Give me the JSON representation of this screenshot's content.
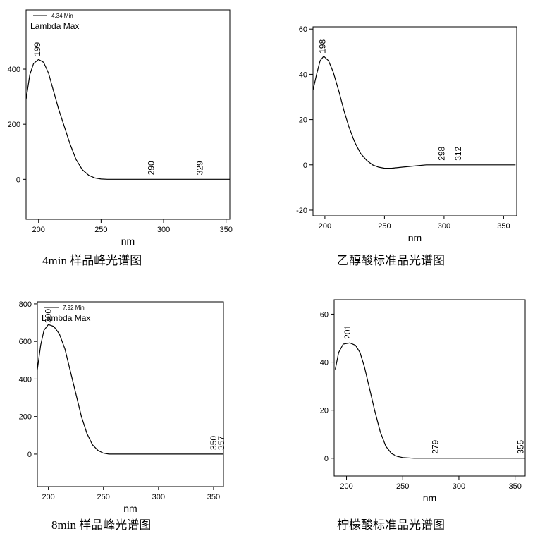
{
  "chart_data": [
    {
      "type": "line",
      "caption": "4min 样品峰光谱图",
      "xlabel": "nm",
      "legend": "4.34 Min",
      "annotation": "Lambda Max",
      "color": "#000000",
      "x": [
        190,
        193,
        196,
        200,
        204,
        208,
        212,
        216,
        220,
        225,
        230,
        235,
        240,
        245,
        250,
        255,
        300,
        353
      ],
      "values": [
        290,
        380,
        420,
        435,
        425,
        385,
        320,
        255,
        200,
        130,
        72,
        35,
        15,
        5,
        1,
        0,
        0,
        0
      ],
      "peaks": [
        199,
        290,
        329
      ],
      "xlim": [
        190,
        353
      ],
      "ylim": [
        -145,
        615
      ],
      "xticks": [
        200,
        250,
        300,
        350
      ],
      "yticks": [
        0,
        200,
        400
      ]
    },
    {
      "type": "line",
      "caption": "乙醇酸标准品光谱图",
      "xlabel": "nm",
      "color": "#000000",
      "x": [
        190,
        193,
        196,
        199,
        203,
        207,
        212,
        216,
        220,
        225,
        230,
        235,
        240,
        245,
        250,
        256,
        265,
        275,
        285,
        360
      ],
      "values": [
        33,
        40,
        46,
        48,
        46,
        41,
        32,
        24,
        17,
        10,
        5,
        2,
        0,
        -1,
        -1.5,
        -1.5,
        -1,
        -0.5,
        0,
        0
      ],
      "peaks": [
        198,
        298,
        312
      ],
      "xlim": [
        190,
        361
      ],
      "ylim": [
        -22.5,
        61
      ],
      "xticks": [
        200,
        250,
        300,
        350
      ],
      "yticks": [
        -20,
        0,
        20,
        40,
        60
      ]
    },
    {
      "type": "line",
      "caption": "8min 样品峰光谱图",
      "xlabel": "nm",
      "legend": "7.92 Min",
      "annotation": "Lambda Max",
      "color": "#000000",
      "x": [
        190,
        193,
        196,
        200,
        205,
        210,
        215,
        220,
        225,
        230,
        235,
        240,
        245,
        250,
        255,
        359
      ],
      "values": [
        450,
        580,
        660,
        690,
        680,
        640,
        560,
        440,
        320,
        200,
        110,
        50,
        20,
        5,
        0,
        0
      ],
      "peaks": [
        200,
        350,
        357
      ],
      "xlim": [
        190,
        359
      ],
      "ylim": [
        -173,
        811
      ],
      "xticks": [
        200,
        250,
        300,
        350
      ],
      "yticks": [
        0,
        200,
        400,
        600,
        800
      ]
    },
    {
      "type": "line",
      "caption": "柠檬酸标准品光谱图",
      "xlabel": "nm",
      "color": "#000000",
      "x": [
        190,
        193,
        197,
        203,
        208,
        212,
        216,
        220,
        225,
        230,
        235,
        240,
        245,
        250,
        260,
        300,
        359
      ],
      "values": [
        37,
        44,
        47.5,
        48,
        47,
        44,
        38,
        30,
        20,
        11,
        5,
        2,
        0.8,
        0.3,
        0,
        0,
        0
      ],
      "peaks": [
        201,
        279,
        355
      ],
      "xlim": [
        189,
        359
      ],
      "ylim": [
        -7.4,
        66
      ],
      "xticks": [
        200,
        250,
        300,
        350
      ],
      "yticks": [
        0,
        20,
        40,
        60
      ]
    }
  ]
}
